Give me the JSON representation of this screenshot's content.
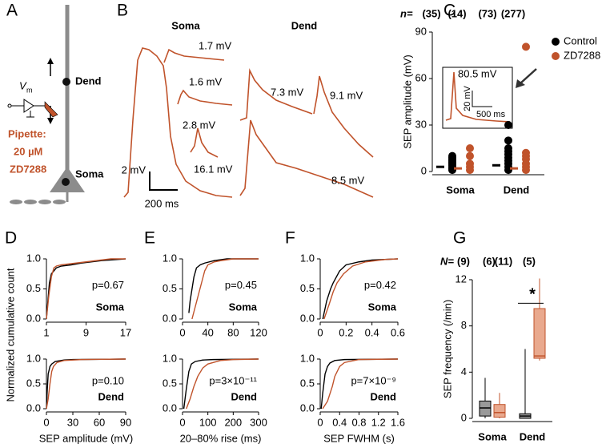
{
  "panels": [
    "A",
    "B",
    "C",
    "D",
    "E",
    "F",
    "G"
  ],
  "panel_a": {
    "vm": "V",
    "vm_sub": "m",
    "dend": "Dend",
    "soma": "Soma",
    "pipette": [
      "Pipette:",
      "20 µM",
      "ZD7288"
    ]
  },
  "panel_b": {
    "soma": "Soma",
    "dend": "Dend",
    "amplitudes": [
      "1.7 mV",
      "1.6 mV",
      "2.8 mV",
      "16.1 mV",
      "7.3 mV",
      "9.1 mV",
      "8.5 mV"
    ],
    "scale_y": "2 mV",
    "scale_x": "200 ms"
  },
  "chart_data": [
    {
      "type": "strip",
      "ylabel": "SEP amplitude (mV)",
      "n_label": "n=",
      "categories": [
        "Soma",
        "Dend"
      ],
      "ylim": [
        0,
        90
      ],
      "yticks": [
        0,
        30,
        60,
        90
      ],
      "legend": "upper right",
      "series": [
        {
          "name": "Control",
          "color": "#000000",
          "counts": [
            "(35)",
            "(73)"
          ],
          "values": [
            [
              1,
              2,
              3,
              4,
              5,
              6,
              7,
              8,
              9,
              10
            ],
            [
              1,
              3,
              5,
              7,
              9,
              11,
              13,
              15,
              20,
              30
            ]
          ],
          "medians": [
            3,
            4
          ]
        },
        {
          "name": "ZD7288",
          "color": "#c0532b",
          "counts": [
            "(14)",
            "(277)"
          ],
          "values": [
            [
              1,
              3,
              5,
              10,
              15
            ],
            [
              1,
              3,
              5,
              8,
              10,
              12,
              80.5
            ]
          ],
          "medians": [
            2,
            2
          ]
        }
      ],
      "inset": {
        "label": "80.5 mV",
        "scale_y": "20 mV",
        "scale_x": "500 ms"
      }
    },
    {
      "type": "line",
      "ylabel": "Normalized cumulative count",
      "label": "Soma",
      "annotation": "p=0.67",
      "xlim": [
        1,
        17
      ],
      "xticks": [
        1,
        9,
        17
      ],
      "ylim": [
        0,
        1
      ],
      "yticks": [
        {
          "value": 0,
          "label": "0.0"
        },
        {
          "value": 0.5,
          "label": "0.5"
        },
        {
          "value": 1,
          "label": "1.0"
        }
      ],
      "series": [
        {
          "color": "#000000",
          "x": [
            1,
            1.3,
            1.6,
            2,
            2.5,
            3,
            4,
            6,
            8,
            10,
            12,
            17
          ],
          "values": [
            0,
            0.3,
            0.6,
            0.75,
            0.8,
            0.85,
            0.88,
            0.9,
            0.93,
            0.95,
            0.97,
            1
          ]
        },
        {
          "color": "#c0532b",
          "x": [
            1,
            1.5,
            2,
            2.5,
            3,
            4,
            6,
            9,
            14,
            17
          ],
          "values": [
            0,
            0.4,
            0.7,
            0.85,
            0.88,
            0.9,
            0.92,
            0.95,
            1,
            1
          ]
        }
      ]
    },
    {
      "type": "line",
      "xlabel": "SEP amplitude (mV)",
      "label": "Dend",
      "annotation": "p=0.10",
      "xlim": [
        0,
        90
      ],
      "xticks": [
        0,
        30,
        60,
        90
      ],
      "ylim": [
        0,
        1
      ],
      "yticks": [
        {
          "value": 0,
          "label": "0.0"
        },
        {
          "value": 0.5,
          "label": "0.5"
        },
        {
          "value": 1,
          "label": "1.0"
        }
      ],
      "series": [
        {
          "color": "#000000",
          "x": [
            0,
            1,
            2,
            4,
            6,
            10,
            20,
            30,
            90
          ],
          "values": [
            0,
            0.4,
            0.7,
            0.85,
            0.9,
            0.95,
            0.98,
            0.99,
            1
          ]
        },
        {
          "color": "#c0532b",
          "x": [
            0,
            2,
            4,
            6,
            8,
            12,
            20,
            40,
            90
          ],
          "values": [
            0,
            0.2,
            0.5,
            0.75,
            0.85,
            0.93,
            0.97,
            0.99,
            1
          ]
        }
      ]
    },
    {
      "type": "line",
      "label": "Soma",
      "annotation": "p=0.45",
      "xlim": [
        0,
        120
      ],
      "xticks": [
        0,
        40,
        80,
        120
      ],
      "ylim": [
        0,
        1
      ],
      "yticks": [
        {
          "value": 0,
          "label": "0.0"
        },
        {
          "value": 0.5,
          "label": "0.5"
        },
        {
          "value": 1,
          "label": "1.0"
        }
      ],
      "series": [
        {
          "color": "#000000",
          "x": [
            10,
            12,
            15,
            18,
            22,
            28,
            35,
            50,
            70,
            120
          ],
          "values": [
            0.1,
            0.3,
            0.5,
            0.7,
            0.85,
            0.9,
            0.93,
            0.97,
            1,
            1
          ]
        },
        {
          "color": "#c0532b",
          "x": [
            15,
            20,
            25,
            30,
            35,
            40,
            50,
            60,
            80,
            120
          ],
          "values": [
            0,
            0.2,
            0.4,
            0.6,
            0.8,
            0.9,
            0.95,
            0.97,
            1,
            1
          ]
        }
      ]
    },
    {
      "type": "line",
      "xlabel": "20–80% rise (ms)",
      "label": "Dend",
      "annotation": "p=3×10⁻¹¹",
      "xlim": [
        0,
        300
      ],
      "xticks": [
        0,
        100,
        200,
        300
      ],
      "ylim": [
        0,
        1
      ],
      "yticks": [
        {
          "value": 0,
          "label": "0.0"
        },
        {
          "value": 0.5,
          "label": "0.5"
        },
        {
          "value": 1,
          "label": "1.0"
        }
      ],
      "series": [
        {
          "color": "#000000",
          "x": [
            5,
            15,
            25,
            35,
            50,
            80,
            120,
            300
          ],
          "values": [
            0,
            0.4,
            0.75,
            0.9,
            0.95,
            0.98,
            0.99,
            1
          ]
        },
        {
          "color": "#c0532b",
          "x": [
            15,
            30,
            45,
            60,
            80,
            100,
            150,
            200,
            300
          ],
          "values": [
            0,
            0.2,
            0.45,
            0.65,
            0.82,
            0.9,
            0.97,
            0.99,
            1
          ]
        }
      ]
    },
    {
      "type": "line",
      "label": "Soma",
      "annotation": "p=0.42",
      "xlim": [
        0,
        0.6
      ],
      "xticks": [
        0,
        0.2,
        0.4,
        0.6
      ],
      "ylim": [
        0,
        1
      ],
      "yticks": [
        {
          "value": 0,
          "label": "0.0"
        },
        {
          "value": 0.5,
          "label": "0.5"
        },
        {
          "value": 1,
          "label": "1.0"
        }
      ],
      "series": [
        {
          "color": "#000000",
          "x": [
            0.02,
            0.05,
            0.08,
            0.1,
            0.15,
            0.2,
            0.3,
            0.4,
            0.6
          ],
          "values": [
            0,
            0.3,
            0.5,
            0.6,
            0.8,
            0.9,
            0.95,
            0.98,
            1
          ]
        },
        {
          "color": "#c0532b",
          "x": [
            0.03,
            0.07,
            0.1,
            0.13,
            0.18,
            0.25,
            0.35,
            0.5,
            0.6
          ],
          "values": [
            0,
            0.25,
            0.45,
            0.6,
            0.75,
            0.88,
            0.95,
            0.99,
            1
          ]
        }
      ]
    },
    {
      "type": "line",
      "xlabel": "SEP FWHM (s)",
      "label": "Dend",
      "annotation": "p=7×10⁻⁹",
      "xlim": [
        0,
        1.6
      ],
      "xticks": [
        0,
        0.4,
        0.8,
        1.2,
        1.6
      ],
      "ylim": [
        0,
        1
      ],
      "yticks": [
        {
          "value": 0,
          "label": "0.0"
        },
        {
          "value": 0.5,
          "label": "0.5"
        },
        {
          "value": 1,
          "label": "1.0"
        }
      ],
      "series": [
        {
          "color": "#000000",
          "x": [
            0.02,
            0.05,
            0.1,
            0.15,
            0.2,
            0.3,
            0.5,
            1.6
          ],
          "values": [
            0,
            0.3,
            0.7,
            0.85,
            0.92,
            0.97,
            0.99,
            1
          ]
        },
        {
          "color": "#c0532b",
          "x": [
            0.05,
            0.15,
            0.25,
            0.3,
            0.4,
            0.5,
            0.8,
            1.6
          ],
          "values": [
            0,
            0.15,
            0.45,
            0.65,
            0.85,
            0.93,
            0.99,
            1
          ]
        }
      ]
    },
    {
      "type": "box",
      "ylabel": "SEP frequency (/min)",
      "n_label": "N=",
      "categories": [
        "Soma",
        "Dend"
      ],
      "ylim": [
        0,
        12
      ],
      "yticks": [
        0,
        4,
        8,
        12
      ],
      "annotation": "*",
      "series": [
        {
          "color": "#000000",
          "fill": "#999999",
          "counts": [
            "(9)",
            "(11)"
          ],
          "boxes": [
            {
              "min": 0,
              "q1": 0.2,
              "median": 0.9,
              "q3": 1.5,
              "max": 3.5
            },
            {
              "min": 0,
              "q1": 0,
              "median": 0.2,
              "q3": 0.4,
              "max": 6
            }
          ]
        },
        {
          "color": "#c0532b",
          "fill": "#e9a98e",
          "counts": [
            "(6)",
            "(5)"
          ],
          "boxes": [
            {
              "min": 0,
              "q1": 0.1,
              "median": 0.5,
              "q3": 1.2,
              "max": 2.2
            },
            {
              "min": 5,
              "q1": 5.2,
              "median": 5.4,
              "q3": 9.5,
              "max": 12.1
            }
          ]
        }
      ]
    }
  ]
}
